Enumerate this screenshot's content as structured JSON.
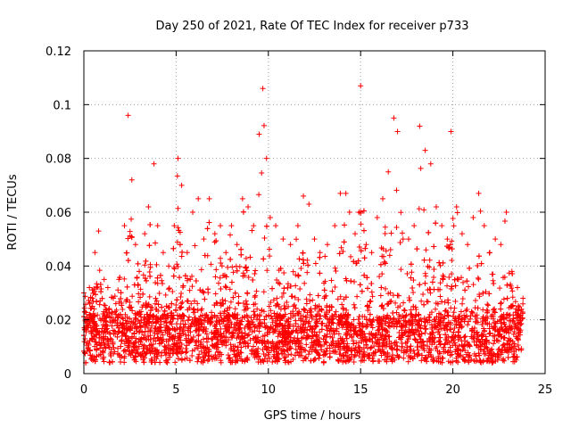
{
  "chart_data": {
    "type": "scatter",
    "title": "Day 250 of 2021, Rate Of TEC Index for receiver p733",
    "xlabel": "GPS time / hours",
    "ylabel": "ROTI / TECUs",
    "xlim": [
      0,
      25
    ],
    "ylim": [
      0,
      0.12
    ],
    "xticks": [
      "0",
      "5",
      "10",
      "15",
      "20",
      "25"
    ],
    "yticks": [
      "0",
      "0.02",
      "0.04",
      "0.06",
      "0.08",
      "0.1",
      "0.12"
    ],
    "grid": true,
    "marker": "plus",
    "color": "#ff0000",
    "envelope": {
      "x": [
        0.0,
        0.3,
        0.6,
        0.8,
        1.1,
        1.3,
        1.6,
        1.9,
        2.2,
        2.4,
        2.6,
        2.8,
        3.0,
        3.3,
        3.5,
        3.8,
        4.0,
        4.3,
        4.6,
        4.9,
        5.1,
        5.3,
        5.6,
        5.9,
        6.2,
        6.5,
        6.8,
        7.1,
        7.4,
        7.7,
        8.0,
        8.3,
        8.6,
        8.9,
        9.2,
        9.5,
        9.7,
        9.9,
        10.1,
        10.4,
        10.8,
        11.2,
        11.6,
        11.9,
        12.2,
        12.5,
        12.8,
        13.2,
        13.6,
        13.9,
        14.2,
        14.4,
        14.7,
        15.0,
        15.3,
        15.6,
        15.9,
        16.2,
        16.5,
        16.8,
        17.0,
        17.3,
        17.6,
        17.9,
        18.2,
        18.5,
        18.8,
        19.1,
        19.4,
        19.7,
        19.9,
        20.2,
        20.5,
        20.8,
        21.1,
        21.4,
        21.7,
        22.0,
        22.3,
        22.6,
        22.9,
        23.2,
        23.5,
        23.8
      ],
      "y_max": [
        0.03,
        0.032,
        0.045,
        0.053,
        0.035,
        0.032,
        0.028,
        0.035,
        0.055,
        0.096,
        0.072,
        0.048,
        0.038,
        0.052,
        0.062,
        0.078,
        0.055,
        0.045,
        0.04,
        0.055,
        0.08,
        0.07,
        0.045,
        0.06,
        0.065,
        0.05,
        0.065,
        0.052,
        0.055,
        0.045,
        0.055,
        0.048,
        0.065,
        0.062,
        0.055,
        0.089,
        0.106,
        0.08,
        0.058,
        0.055,
        0.05,
        0.048,
        0.055,
        0.066,
        0.063,
        0.05,
        0.045,
        0.048,
        0.055,
        0.067,
        0.067,
        0.06,
        0.052,
        0.107,
        0.048,
        0.045,
        0.058,
        0.065,
        0.075,
        0.095,
        0.09,
        0.05,
        0.05,
        0.055,
        0.092,
        0.083,
        0.078,
        0.062,
        0.055,
        0.05,
        0.09,
        0.062,
        0.052,
        0.048,
        0.058,
        0.067,
        0.055,
        0.045,
        0.05,
        0.048,
        0.06,
        0.038,
        0.032,
        0.028
      ]
    }
  }
}
